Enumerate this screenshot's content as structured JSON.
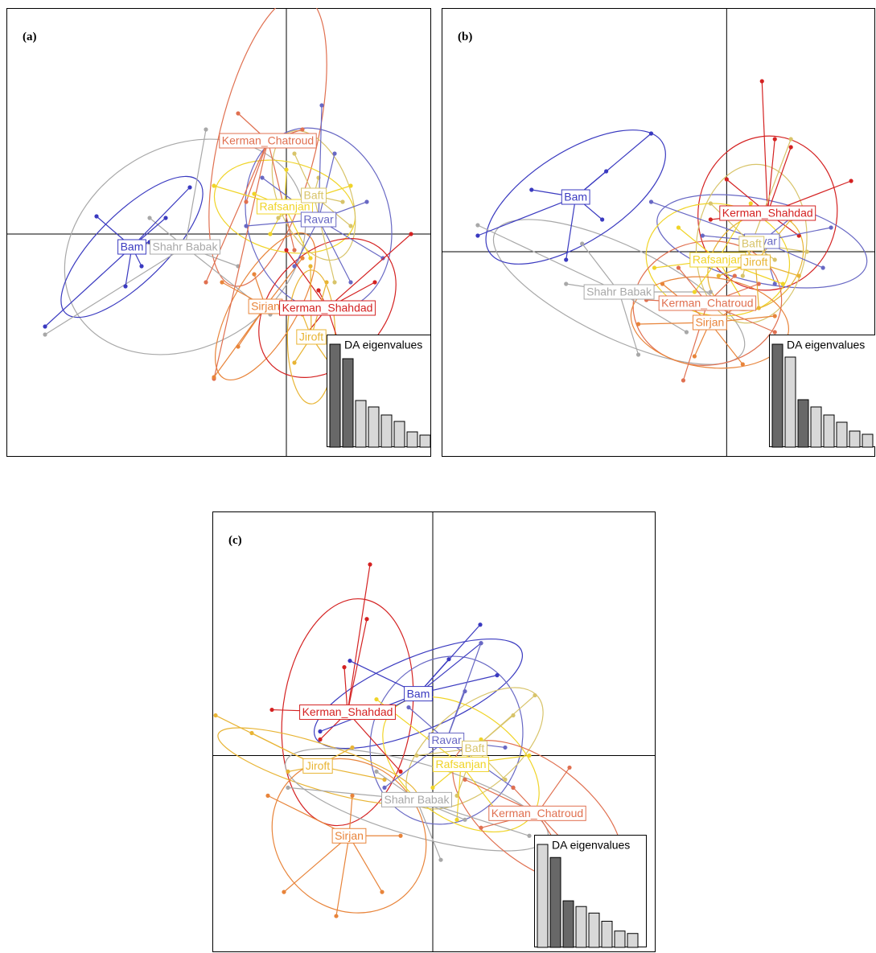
{
  "chart_data": [
    {
      "type": "scatter",
      "panel_label": "(a)",
      "xlim": [
        -348,
        180
      ],
      "ylim": [
        -277,
        281
      ],
      "groups": [
        {
          "name": "Shahr Babak",
          "color": "#a8a8a8",
          "cx": -126,
          "cy": -16,
          "x": [
            -300,
            -200,
            -60,
            -20,
            -100,
            -170
          ],
          "y": [
            -125,
            -10,
            -40,
            -100,
            130,
            20
          ]
        },
        {
          "name": "Bam",
          "color": "#3a3ac0",
          "cx": -192,
          "cy": -16,
          "x": [
            -236,
            -180,
            -200,
            -300,
            -120,
            -150,
            -170
          ],
          "y": [
            22,
            -40,
            -65,
            -115,
            58,
            20,
            -10
          ]
        },
        {
          "name": "Kerman_Chatroud",
          "color": "#e07050",
          "cx": -23,
          "cy": 116,
          "x": [
            -60,
            -100,
            -90,
            20,
            -50,
            10
          ],
          "y": [
            150,
            -60,
            -180,
            130,
            40,
            -20
          ]
        },
        {
          "name": "Sirjan",
          "color": "#e8843a",
          "cx": -26,
          "cy": -90,
          "x": [
            -90,
            -60,
            20,
            -40,
            -80
          ],
          "y": [
            -178,
            -140,
            -30,
            -50,
            -60
          ]
        },
        {
          "name": "Rafsanjan",
          "color": "#f0d428",
          "cx": -2,
          "cy": 34,
          "x": [
            -90,
            -40,
            60,
            80,
            -20,
            30,
            0
          ],
          "y": [
            60,
            50,
            20,
            60,
            0,
            -30,
            80
          ]
        },
        {
          "name": "Baft",
          "color": "#d8c46a",
          "cx": 34,
          "cy": 48,
          "x": [
            10,
            70,
            80,
            -10,
            40,
            60
          ],
          "y": [
            100,
            40,
            10,
            20,
            70,
            -60
          ]
        },
        {
          "name": "Ravar",
          "color": "#6868c4",
          "cx": 40,
          "cy": 18,
          "x": [
            44,
            -30,
            100,
            120,
            80,
            10,
            -50,
            60
          ],
          "y": [
            160,
            70,
            40,
            -30,
            -60,
            -40,
            10,
            100
          ]
        },
        {
          "name": "Kerman_Shahdad",
          "color": "#d42222",
          "cx": 51,
          "cy": -92,
          "x": [
            155,
            110,
            40,
            70,
            20,
            0
          ],
          "y": [
            0,
            -60,
            -70,
            -150,
            -130,
            -20
          ]
        },
        {
          "name": "Jiroft",
          "color": "#e8b434",
          "cx": 31,
          "cy": -128,
          "x": [
            20,
            50,
            10,
            60,
            30
          ],
          "y": [
            -100,
            -60,
            -160,
            -170,
            -40
          ]
        }
      ],
      "eigenvalues": {
        "title": "DA eigenvalues",
        "values": [
          128,
          110,
          58,
          50,
          40,
          32,
          19,
          15
        ],
        "colors": [
          "#686868",
          "#686868",
          "#d8d8d8",
          "#d8d8d8",
          "#d8d8d8",
          "#d8d8d8",
          "#d8d8d8",
          "#d8d8d8"
        ]
      }
    },
    {
      "type": "scatter",
      "panel_label": "(b)",
      "xlim": [
        -355,
        185
      ],
      "ylim": [
        -255,
        303
      ],
      "groups": [
        {
          "name": "Shahr Babak",
          "color": "#a8a8a8",
          "cx": -134,
          "cy": -50,
          "x": [
            -310,
            -110,
            -200,
            -50,
            -20,
            -180
          ],
          "y": [
            33,
            -128,
            -40,
            -100,
            -50,
            10
          ]
        },
        {
          "name": "Bam",
          "color": "#3a3ac0",
          "cx": -188,
          "cy": 68,
          "x": [
            -94,
            -243,
            -200,
            -150,
            -310,
            -155
          ],
          "y": [
            147,
            77,
            -10,
            100,
            20,
            40
          ]
        },
        {
          "name": "Kerman_Shahdad",
          "color": "#d42222",
          "cx": 51,
          "cy": 48,
          "x": [
            44,
            60,
            155,
            0,
            90,
            -20,
            80
          ],
          "y": [
            212,
            140,
            88,
            90,
            20,
            40,
            130
          ]
        },
        {
          "name": "Ravar",
          "color": "#6868c4",
          "cx": 44,
          "cy": 13,
          "x": [
            -94,
            120,
            90,
            60,
            -30,
            130
          ],
          "y": [
            62,
            -20,
            50,
            -40,
            20,
            30
          ]
        },
        {
          "name": "Baft",
          "color": "#d8c46a",
          "cx": 31,
          "cy": 10,
          "x": [
            80,
            -20,
            60,
            100,
            20
          ],
          "y": [
            140,
            60,
            -10,
            0,
            -30
          ]
        },
        {
          "name": "Rafsanjan",
          "color": "#f0d428",
          "cx": -11,
          "cy": -10,
          "x": [
            -60,
            30,
            -90,
            70,
            20,
            -40
          ],
          "y": [
            30,
            60,
            -20,
            -40,
            -60,
            -50
          ]
        },
        {
          "name": "Jiroft",
          "color": "#e8b434",
          "cx": 36,
          "cy": -13,
          "x": [
            40,
            90,
            -10,
            80,
            20
          ],
          "y": [
            -70,
            -30,
            -30,
            40,
            10
          ]
        },
        {
          "name": "Kerman_Chatroud",
          "color": "#e07050",
          "cx": -24,
          "cy": -64,
          "x": [
            -54,
            -100,
            40,
            60,
            -60,
            10
          ],
          "y": [
            -160,
            -60,
            -40,
            -100,
            -20,
            -30
          ]
        },
        {
          "name": "Sirjan",
          "color": "#e8843a",
          "cx": -21,
          "cy": -88,
          "x": [
            -110,
            -40,
            20,
            60,
            -80,
            30
          ],
          "y": [
            -90,
            -130,
            -140,
            -80,
            -40,
            -60
          ]
        }
      ],
      "eigenvalues": {
        "title": "DA eigenvalues",
        "values": [
          128,
          112,
          59,
          50,
          40,
          31,
          20,
          16
        ],
        "colors": [
          "#686868",
          "#d8d8d8",
          "#686868",
          "#d8d8d8",
          "#d8d8d8",
          "#d8d8d8",
          "#d8d8d8",
          "#d8d8d8"
        ]
      }
    },
    {
      "type": "scatter",
      "panel_label": "(c)",
      "xlim": [
        -274,
        277
      ],
      "ylim": [
        -245,
        304
      ],
      "groups": [
        {
          "name": "Kerman_Shahdad",
          "color": "#d42222",
          "cx": -106,
          "cy": 54,
          "x": [
            -78,
            -82,
            -200,
            -140,
            -40,
            -110
          ],
          "y": [
            238,
            170,
            57,
            20,
            -20,
            110
          ]
        },
        {
          "name": "Bam",
          "color": "#3a3ac0",
          "cx": -18,
          "cy": 77,
          "x": [
            -103,
            59,
            60,
            -140,
            80,
            -50,
            20
          ],
          "y": [
            118,
            163,
            140,
            30,
            100,
            60,
            120
          ]
        },
        {
          "name": "Ravar",
          "color": "#6868c4",
          "cx": 17,
          "cy": 19,
          "x": [
            60,
            90,
            -60,
            -30,
            100,
            40
          ],
          "y": [
            140,
            10,
            -40,
            60,
            -40,
            80
          ]
        },
        {
          "name": "Baft",
          "color": "#d8c46a",
          "cx": 52,
          "cy": 9,
          "x": [
            127,
            100,
            -20,
            90,
            30
          ],
          "y": [
            75,
            50,
            0,
            -30,
            -50
          ]
        },
        {
          "name": "Jiroft",
          "color": "#e8b434",
          "cx": -143,
          "cy": -13,
          "x": [
            -270,
            -225,
            -60,
            -180,
            -100
          ],
          "y": [
            50,
            28,
            -30,
            -20,
            10
          ]
        },
        {
          "name": "Rafsanjan",
          "color": "#f0d428",
          "cx": 35,
          "cy": -11,
          "x": [
            -70,
            80,
            120,
            0,
            60,
            30
          ],
          "y": [
            70,
            -70,
            0,
            -40,
            20,
            -80
          ]
        },
        {
          "name": "Shahr Babak",
          "color": "#a8a8a8",
          "cx": -20,
          "cy": -55,
          "x": [
            -180,
            10,
            120,
            -70,
            40
          ],
          "y": [
            -40,
            -130,
            -100,
            -20,
            -80
          ]
        },
        {
          "name": "Kerman_Chatroud",
          "color": "#e07050",
          "cx": 130,
          "cy": -72,
          "x": [
            170,
            228,
            100,
            60,
            160,
            40
          ],
          "y": [
            -15,
            -176,
            -40,
            -90,
            -120,
            -30
          ]
        },
        {
          "name": "Sirjan",
          "color": "#e8843a",
          "cx": -104,
          "cy": -100,
          "x": [
            -185,
            -205,
            -63,
            -40,
            -120,
            -100
          ],
          "y": [
            -170,
            -50,
            -170,
            -100,
            -200,
            -50
          ]
        }
      ],
      "eigenvalues": {
        "title": "DA eigenvalues",
        "values": [
          126,
          110,
          57,
          50,
          42,
          32,
          20,
          17
        ],
        "colors": [
          "#d8d8d8",
          "#686868",
          "#686868",
          "#d8d8d8",
          "#d8d8d8",
          "#d8d8d8",
          "#d8d8d8",
          "#d8d8d8"
        ]
      }
    }
  ]
}
